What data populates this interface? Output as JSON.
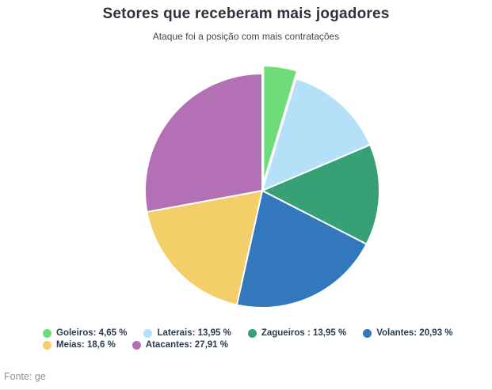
{
  "chart_data": {
    "type": "pie",
    "title": "Setores que receberam mais jogadores",
    "subtitle": "Ataque foi a posição com mais contratações",
    "source": "Fonte: ge",
    "categories": [
      "Goleiros",
      "Laterais",
      "Zagueiros",
      "Volantes",
      "Meias",
      "Atacantes"
    ],
    "values": [
      4.65,
      13.95,
      13.95,
      20.93,
      18.6,
      27.91
    ],
    "unit": "%",
    "legend_labels": [
      "Goleiros: 4,65 %",
      "Laterais: 13,95 %",
      "Zagueiros : 13,95 %",
      "Volantes: 20,93 %",
      "Meias: 18,6 %",
      "Atacantes: 27,91 %"
    ],
    "colors": [
      "#6edc78",
      "#b4e1f8",
      "#38a076",
      "#3377bd",
      "#f4ce69",
      "#b470b5"
    ],
    "slice_ids": [
      "goleiros",
      "laterais",
      "zagueiros",
      "volantes",
      "meias",
      "atacantes"
    ],
    "start_angle_deg": 0,
    "direction": "clockwise",
    "exploded_slice": "Goleiros",
    "legend_position": "bottom",
    "background_color": "#ffffff",
    "slice_border_color": "#ffffff"
  }
}
